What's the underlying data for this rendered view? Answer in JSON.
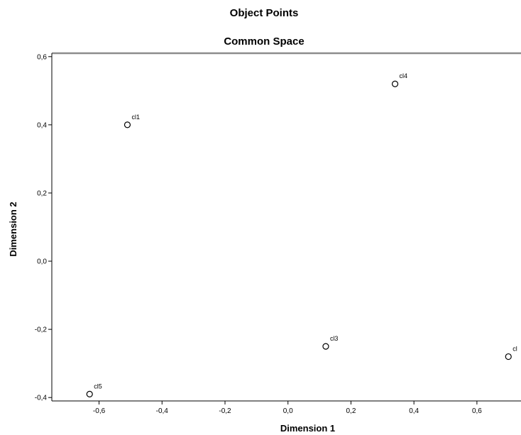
{
  "chart_data": {
    "type": "scatter",
    "title": "Object Points",
    "subtitle": "Common Space",
    "xlabel": "Dimension 1",
    "ylabel": "Dimension 2",
    "xlim": [
      -0.75,
      0.74
    ],
    "ylim": [
      -0.41,
      0.61
    ],
    "x_ticks": [
      "-0,6",
      "-0,4",
      "-0,2",
      "0,0",
      "0,2",
      "0,4",
      "0,6"
    ],
    "x_tick_values": [
      -0.6,
      -0.4,
      -0.2,
      0.0,
      0.2,
      0.4,
      0.6
    ],
    "y_ticks": [
      "0,6",
      "0,4",
      "0,2",
      "0,0",
      "-0,2",
      "-0,4"
    ],
    "y_tick_values": [
      0.6,
      0.4,
      0.2,
      0.0,
      -0.2,
      -0.4
    ],
    "grid": false,
    "points": [
      {
        "label": "cl1",
        "x": -0.51,
        "y": 0.4
      },
      {
        "label": "cl4",
        "x": 0.34,
        "y": 0.52
      },
      {
        "label": "cl3",
        "x": 0.12,
        "y": -0.25
      },
      {
        "label": "cl",
        "x": 0.7,
        "y": -0.28
      },
      {
        "label": "cl5",
        "x": -0.63,
        "y": -0.39
      }
    ],
    "colors": {
      "marker": "#000000",
      "frame": "#000000"
    }
  }
}
